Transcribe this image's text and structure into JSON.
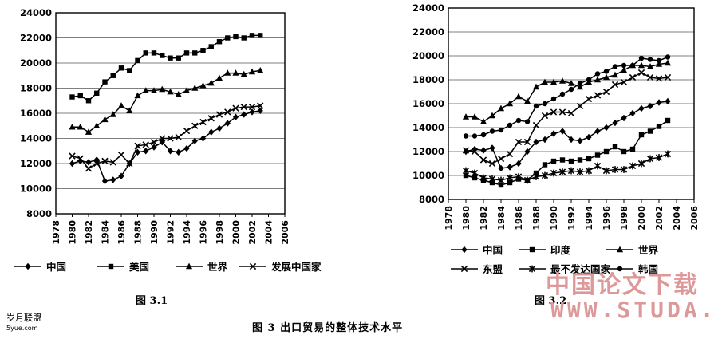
{
  "captions": {
    "chart1": "图 3.1",
    "chart2": "图 3.2",
    "main": "图 3   出口贸易的整体技术水平"
  },
  "watermark": {
    "left_title": "岁月联盟",
    "left_url": "5yue.com",
    "right_title": "中国论文下载",
    "right_url": "WWW.STUDA."
  },
  "chart_data": [
    {
      "type": "line",
      "ylim": [
        8000,
        24000
      ],
      "yticks": [
        8000,
        10000,
        12000,
        14000,
        16000,
        18000,
        20000,
        22000,
        24000
      ],
      "xlim": [
        1978,
        2006
      ],
      "xticks": [
        1978,
        1980,
        1982,
        1984,
        1986,
        1988,
        1990,
        1992,
        1994,
        1996,
        1998,
        2000,
        2002,
        2004,
        2006
      ],
      "grid": true,
      "legend_position": "bottom",
      "x": [
        1980,
        1981,
        1982,
        1983,
        1984,
        1985,
        1986,
        1987,
        1988,
        1989,
        1990,
        1991,
        1992,
        1993,
        1994,
        1995,
        1996,
        1997,
        1998,
        1999,
        2000,
        2001,
        2002,
        2003
      ],
      "series": [
        {
          "name": "中国",
          "marker": "diamond",
          "values": [
            12000,
            12200,
            12100,
            12300,
            10600,
            10700,
            11000,
            12000,
            12900,
            13000,
            13300,
            13700,
            13000,
            12900,
            13200,
            13800,
            14000,
            14500,
            14800,
            15200,
            15700,
            15900,
            16100,
            16200
          ]
        },
        {
          "name": "美国",
          "marker": "square",
          "values": [
            17300,
            17400,
            17000,
            17600,
            18500,
            19000,
            19600,
            19400,
            20200,
            20800,
            20800,
            20600,
            20400,
            20400,
            20800,
            20800,
            21000,
            21300,
            21700,
            22000,
            22100,
            22000,
            22200,
            22200
          ]
        },
        {
          "name": "世界",
          "marker": "triangle",
          "values": [
            14900,
            14900,
            14500,
            15000,
            15500,
            15900,
            16600,
            16200,
            17400,
            17800,
            17800,
            17900,
            17700,
            17500,
            17800,
            18000,
            18200,
            18400,
            18800,
            19200,
            19200,
            19100,
            19300,
            19400
          ]
        },
        {
          "name": "发展中国家",
          "marker": "x",
          "values": [
            12600,
            12400,
            11600,
            12000,
            12200,
            12100,
            12700,
            12000,
            13400,
            13500,
            13700,
            14000,
            14000,
            14100,
            14600,
            15000,
            15300,
            15600,
            15900,
            16100,
            16400,
            16500,
            16500,
            16600
          ]
        }
      ]
    },
    {
      "type": "line",
      "ylim": [
        8000,
        24000
      ],
      "yticks": [
        8000,
        10000,
        12000,
        14000,
        16000,
        18000,
        20000,
        22000,
        24000
      ],
      "xlim": [
        1978,
        2006
      ],
      "xticks": [
        1978,
        1980,
        1982,
        1984,
        1986,
        1988,
        1990,
        1992,
        1994,
        1996,
        1998,
        2000,
        2002,
        2004,
        2006
      ],
      "grid": true,
      "legend_position": "bottom",
      "x": [
        1980,
        1981,
        1982,
        1983,
        1984,
        1985,
        1986,
        1987,
        1988,
        1989,
        1990,
        1991,
        1992,
        1993,
        1994,
        1995,
        1996,
        1997,
        1998,
        1999,
        2000,
        2001,
        2002,
        2003
      ],
      "series": [
        {
          "name": "中国",
          "marker": "diamond",
          "values": [
            12000,
            12200,
            12100,
            12300,
            10600,
            10700,
            11000,
            12000,
            12800,
            13000,
            13500,
            13700,
            13000,
            12900,
            13200,
            13700,
            14000,
            14400,
            14800,
            15200,
            15600,
            15800,
            16100,
            16200
          ]
        },
        {
          "name": "印度",
          "marker": "square",
          "values": [
            10000,
            9800,
            9600,
            9400,
            9200,
            9400,
            9700,
            9600,
            10200,
            10900,
            11200,
            11300,
            11200,
            11300,
            11400,
            11700,
            12000,
            12400,
            12000,
            12200,
            13400,
            13700,
            14100,
            14600
          ]
        },
        {
          "name": "世界",
          "marker": "triangle",
          "values": [
            14900,
            14900,
            14500,
            15000,
            15600,
            16000,
            16600,
            16200,
            17400,
            17800,
            17800,
            17900,
            17700,
            17400,
            17800,
            18000,
            18200,
            18400,
            18800,
            19200,
            19200,
            19100,
            19300,
            19400
          ]
        },
        {
          "name": "东盟",
          "marker": "x",
          "values": [
            12100,
            12000,
            11300,
            11000,
            11400,
            11800,
            12800,
            12800,
            14200,
            15000,
            15300,
            15300,
            15200,
            15800,
            16400,
            16700,
            17000,
            17600,
            17800,
            18200,
            18600,
            18200,
            18100,
            18200
          ]
        },
        {
          "name": "最不发达国家",
          "marker": "star",
          "values": [
            10400,
            10200,
            9800,
            9700,
            9600,
            9800,
            9900,
            9600,
            9900,
            10000,
            10200,
            10300,
            10400,
            10300,
            10400,
            10800,
            10400,
            10500,
            10500,
            10800,
            11000,
            11400,
            11500,
            11800
          ]
        },
        {
          "name": "韩国",
          "marker": "circle",
          "values": [
            13300,
            13300,
            13400,
            13700,
            13800,
            14200,
            14600,
            14500,
            15800,
            16000,
            16400,
            16800,
            17200,
            17700,
            18000,
            18500,
            18700,
            19100,
            19200,
            19200,
            19800,
            19700,
            19600,
            19900
          ]
        }
      ]
    }
  ]
}
